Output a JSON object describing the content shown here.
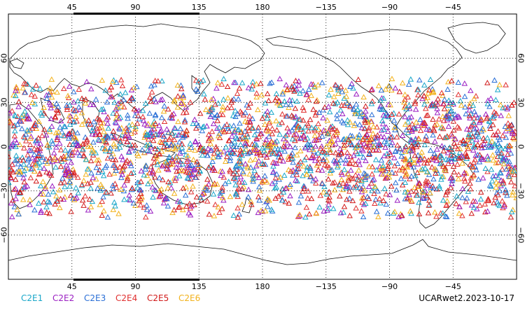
{
  "map": {
    "projection": "cylindrical equidistant",
    "center_longitude": 0,
    "lon_range": [
      0,
      360
    ],
    "lat_range": [
      -90,
      90
    ],
    "grid": true,
    "lon_tick_labels": [
      "45",
      "90",
      "135",
      "180",
      "−135",
      "−90",
      "−45"
    ],
    "lon_tick_values": [
      45,
      90,
      135,
      180,
      225,
      270,
      315
    ],
    "lat_tick_labels": [
      "60",
      "30",
      "0",
      "−30",
      "−60"
    ],
    "lat_tick_values": [
      60,
      30,
      0,
      -30,
      -60
    ],
    "marker_shape": "open triangle",
    "observation_lat_range": [
      -48,
      46
    ]
  },
  "legend": {
    "items": [
      {
        "label": "C2E1",
        "color": "#1aa7c9"
      },
      {
        "label": "C2E2",
        "color": "#9b1fc2"
      },
      {
        "label": "C2E3",
        "color": "#2a6fd6"
      },
      {
        "label": "C2E4",
        "color": "#e03030"
      },
      {
        "label": "C2E5",
        "color": "#d11a1a"
      },
      {
        "label": "C2E6",
        "color": "#f2b21c"
      }
    ]
  },
  "footer": {
    "product_label": "UCARwet2.2023-10-17"
  }
}
